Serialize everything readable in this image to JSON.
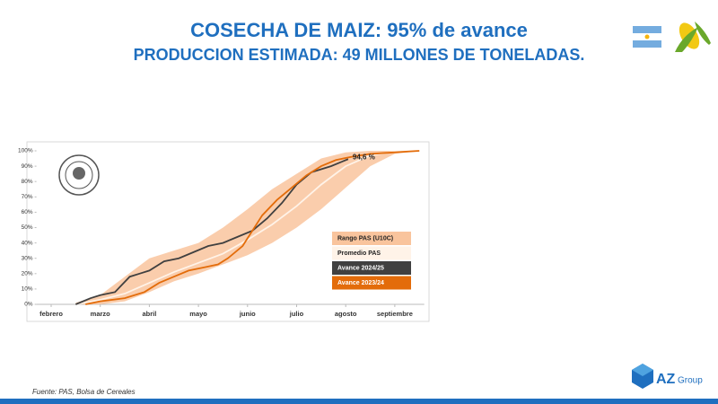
{
  "header": {
    "title": "COSECHA DE MAIZ: 95% de avance",
    "subtitle": "PRODUCCION ESTIMADA: 49 MILLONES DE TONELADAS."
  },
  "chart_data": {
    "type": "line",
    "annotation": "94,6 %",
    "xlim": [
      -0.3,
      7.6
    ],
    "xticks": [
      {
        "value": 0,
        "label": "febrero"
      },
      {
        "value": 1,
        "label": "marzo"
      },
      {
        "value": 2,
        "label": "abril"
      },
      {
        "value": 3,
        "label": "mayo"
      },
      {
        "value": 4,
        "label": "junio"
      },
      {
        "value": 5,
        "label": "julio"
      },
      {
        "value": 6,
        "label": "agosto"
      },
      {
        "value": 7,
        "label": "septiembre"
      }
    ],
    "ylim": [
      0,
      100
    ],
    "yticks": [
      {
        "value": 0,
        "label": "0%"
      },
      {
        "value": 10,
        "label": "10%"
      },
      {
        "value": 20,
        "label": "20%"
      },
      {
        "value": 30,
        "label": "30%"
      },
      {
        "value": 40,
        "label": "40%"
      },
      {
        "value": 50,
        "label": "50%"
      },
      {
        "value": 60,
        "label": "60%"
      },
      {
        "value": 70,
        "label": "70%"
      },
      {
        "value": 80,
        "label": "80%"
      },
      {
        "value": 90,
        "label": "90%"
      },
      {
        "value": 100,
        "label": "100%"
      }
    ],
    "grid": false,
    "series": [
      {
        "name": "Rango PAS (U10C)",
        "color": "#f9c49d",
        "x": [
          0.5,
          1,
          1.5,
          2,
          2.5,
          3,
          3.5,
          4,
          4.5,
          5,
          5.5,
          6,
          6.5,
          7,
          7.5
        ],
        "low": [
          0,
          0,
          2,
          8,
          15,
          20,
          26,
          32,
          40,
          50,
          62,
          76,
          90,
          98,
          100
        ],
        "high": [
          1,
          6,
          18,
          30,
          35,
          40,
          50,
          62,
          75,
          85,
          95,
          99,
          100,
          100,
          100
        ]
      },
      {
        "name": "Promedio PAS",
        "color": "#fff3e8",
        "x": [
          0.5,
          1,
          1.5,
          2,
          2.5,
          3,
          3.5,
          4,
          4.5,
          5,
          5.5,
          6,
          6.5,
          7,
          7.5
        ],
        "values": [
          0,
          3,
          7,
          14,
          21,
          27,
          33,
          42,
          52,
          64,
          78,
          90,
          97,
          99.5,
          100
        ]
      },
      {
        "name": "Avance 2024/25",
        "color": "#404040",
        "x": [
          0.5,
          0.8,
          1.0,
          1.3,
          1.6,
          1.8,
          2.0,
          2.3,
          2.6,
          2.9,
          3.2,
          3.5,
          3.8,
          4.1,
          4.4,
          4.7,
          5.0,
          5.3,
          5.5,
          5.7,
          6.05
        ],
        "values": [
          0,
          4,
          6,
          8,
          18,
          20,
          22,
          28,
          30,
          34,
          38,
          40,
          44,
          48,
          56,
          66,
          78,
          86,
          88,
          90,
          94.6
        ]
      },
      {
        "name": "Avance 2023/24",
        "color": "#e36c0a",
        "x": [
          0.7,
          1.0,
          1.5,
          1.9,
          2.2,
          2.5,
          2.8,
          3.1,
          3.4,
          3.6,
          3.9,
          4.1,
          4.3,
          4.6,
          4.9,
          5.2,
          5.5,
          5.8,
          6.1,
          6.5,
          7.0,
          7.5
        ],
        "values": [
          0,
          2,
          4,
          8,
          14,
          18,
          22,
          24,
          26,
          30,
          38,
          48,
          58,
          68,
          76,
          84,
          90,
          94,
          96,
          98,
          99,
          100
        ]
      }
    ]
  },
  "footer": {
    "source": "Fuente: PAS, Bolsa de Cereales",
    "logo": "AZ",
    "logo_sub": "Group"
  }
}
